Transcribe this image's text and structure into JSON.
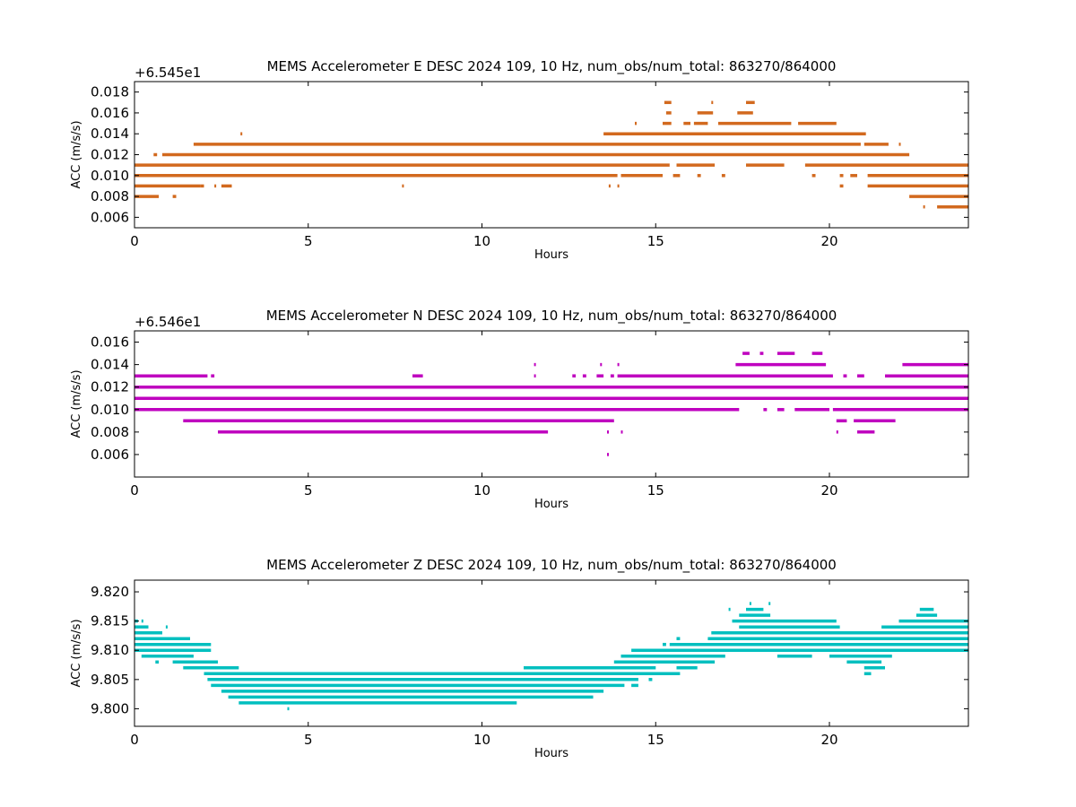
{
  "chart_data": [
    {
      "type": "scatter",
      "title": "MEMS Accelerometer E DESC 2024 109, 10 Hz, num_obs/num_total: 863270/864000",
      "xlabel": "Hours",
      "ylabel": "ACC (m/s/s)",
      "offset_label": "+6.545e1",
      "color": "#d2691e",
      "xlim": [
        0,
        24
      ],
      "ylim": [
        0.005,
        0.019
      ],
      "xticks": [
        "0",
        "5",
        "10",
        "15",
        "20"
      ],
      "yticks": [
        "0.006",
        "0.008",
        "0.010",
        "0.012",
        "0.014",
        "0.016",
        "0.018"
      ],
      "levels": [
        {
          "y": 0.017,
          "segments": [
            [
              15.25,
              15.45
            ],
            [
              16.6,
              16.65
            ],
            [
              17.6,
              17.85
            ]
          ]
        },
        {
          "y": 0.016,
          "segments": [
            [
              15.3,
              15.45
            ],
            [
              16.2,
              16.65
            ],
            [
              17.35,
              17.8
            ]
          ]
        },
        {
          "y": 0.015,
          "segments": [
            [
              14.4,
              14.45
            ],
            [
              15.2,
              15.45
            ],
            [
              15.8,
              16.0
            ],
            [
              16.1,
              16.5
            ],
            [
              16.8,
              18.9
            ],
            [
              19.1,
              20.2
            ]
          ]
        },
        {
          "y": 0.014,
          "segments": [
            [
              3.05,
              3.1
            ],
            [
              13.5,
              21.05
            ]
          ]
        },
        {
          "y": 0.013,
          "segments": [
            [
              1.7,
              20.9
            ],
            [
              21.0,
              21.7
            ],
            [
              22.0,
              22.05
            ]
          ]
        },
        {
          "y": 0.012,
          "segments": [
            [
              0.55,
              0.65
            ],
            [
              0.8,
              22.3
            ]
          ]
        },
        {
          "y": 0.011,
          "segments": [
            [
              0.0,
              15.4
            ],
            [
              15.6,
              16.7
            ],
            [
              17.6,
              18.7
            ],
            [
              19.3,
              24.0
            ]
          ]
        },
        {
          "y": 0.01,
          "segments": [
            [
              0.0,
              13.9
            ],
            [
              14.0,
              15.2
            ],
            [
              15.5,
              15.7
            ],
            [
              16.2,
              16.3
            ],
            [
              16.9,
              17.0
            ],
            [
              19.5,
              19.6
            ],
            [
              20.3,
              20.4
            ],
            [
              20.6,
              20.8
            ],
            [
              21.1,
              24.0
            ]
          ]
        },
        {
          "y": 0.009,
          "segments": [
            [
              0.0,
              1.9
            ],
            [
              1.9,
              2.0
            ],
            [
              2.3,
              2.3
            ],
            [
              2.5,
              2.8
            ],
            [
              7.7,
              7.75
            ],
            [
              13.65,
              13.7
            ],
            [
              13.9,
              13.95
            ],
            [
              20.3,
              20.4
            ],
            [
              21.1,
              24.0
            ]
          ]
        },
        {
          "y": 0.008,
          "segments": [
            [
              0.0,
              0.7
            ],
            [
              1.1,
              1.2
            ],
            [
              22.3,
              24.0
            ]
          ]
        },
        {
          "y": 0.007,
          "segments": [
            [
              22.7,
              22.75
            ],
            [
              23.1,
              24.0
            ]
          ]
        }
      ]
    },
    {
      "type": "scatter",
      "title": "MEMS Accelerometer N DESC 2024 109, 10 Hz, num_obs/num_total: 863270/864000",
      "xlabel": "Hours",
      "ylabel": "ACC (m/s/s)",
      "offset_label": "+6.546e1",
      "color": "#bf00bf",
      "xlim": [
        0,
        24
      ],
      "ylim": [
        0.004,
        0.017
      ],
      "xticks": [
        "0",
        "5",
        "10",
        "15",
        "20"
      ],
      "yticks": [
        "0.006",
        "0.008",
        "0.010",
        "0.012",
        "0.014",
        "0.016"
      ],
      "levels": [
        {
          "y": 0.015,
          "segments": [
            [
              17.5,
              17.7
            ],
            [
              18.0,
              18.1
            ],
            [
              18.5,
              19.0
            ],
            [
              19.5,
              19.8
            ]
          ]
        },
        {
          "y": 0.014,
          "segments": [
            [
              11.5,
              11.55
            ],
            [
              13.4,
              13.45
            ],
            [
              13.9,
              13.95
            ],
            [
              17.3,
              19.9
            ],
            [
              22.1,
              24.0
            ]
          ]
        },
        {
          "y": 0.013,
          "segments": [
            [
              0.0,
              2.1
            ],
            [
              2.2,
              2.3
            ],
            [
              8.0,
              8.3
            ],
            [
              11.5,
              11.55
            ],
            [
              12.6,
              12.7
            ],
            [
              12.9,
              13.0
            ],
            [
              13.3,
              13.5
            ],
            [
              13.7,
              13.8
            ],
            [
              13.9,
              20.1
            ],
            [
              20.4,
              20.5
            ],
            [
              20.8,
              21.0
            ],
            [
              21.6,
              24.0
            ]
          ]
        },
        {
          "y": 0.012,
          "segments": [
            [
              0.0,
              24.0
            ]
          ]
        },
        {
          "y": 0.011,
          "segments": [
            [
              0.0,
              24.0
            ]
          ]
        },
        {
          "y": 0.01,
          "segments": [
            [
              0.0,
              17.4
            ],
            [
              18.1,
              18.2
            ],
            [
              18.5,
              18.7
            ],
            [
              19.0,
              20.0
            ],
            [
              20.1,
              24.0
            ]
          ]
        },
        {
          "y": 0.009,
          "segments": [
            [
              1.4,
              13.8
            ],
            [
              20.2,
              20.5
            ],
            [
              20.7,
              21.9
            ]
          ]
        },
        {
          "y": 0.008,
          "segments": [
            [
              2.4,
              11.9
            ],
            [
              13.6,
              13.65
            ],
            [
              14.0,
              14.05
            ],
            [
              20.2,
              20.25
            ],
            [
              20.8,
              21.3
            ]
          ]
        },
        {
          "y": 0.006,
          "segments": [
            [
              13.6,
              13.65
            ]
          ]
        }
      ]
    },
    {
      "type": "scatter",
      "title": "MEMS Accelerometer Z DESC 2024 109, 10 Hz, num_obs/num_total: 863270/864000",
      "xlabel": "Hours",
      "ylabel": "ACC (m/s/s)",
      "offset_label": "",
      "color": "#00bfbf",
      "xlim": [
        0,
        24
      ],
      "ylim": [
        9.797,
        9.822
      ],
      "xticks": [
        "0",
        "5",
        "10",
        "15",
        "20"
      ],
      "yticks": [
        "9.800",
        "9.805",
        "9.810",
        "9.815",
        "9.820"
      ],
      "levels": [
        {
          "y": 9.818,
          "segments": [
            [
              17.7,
              17.75
            ],
            [
              18.25,
              18.3
            ]
          ]
        },
        {
          "y": 9.817,
          "segments": [
            [
              17.1,
              17.15
            ],
            [
              17.6,
              18.1
            ],
            [
              22.6,
              23.0
            ]
          ]
        },
        {
          "y": 9.816,
          "segments": [
            [
              17.4,
              18.3
            ],
            [
              22.5,
              23.1
            ]
          ]
        },
        {
          "y": 9.815,
          "segments": [
            [
              0.0,
              0.1
            ],
            [
              0.2,
              0.25
            ],
            [
              17.2,
              20.2
            ],
            [
              22.0,
              24.0
            ]
          ]
        },
        {
          "y": 9.814,
          "segments": [
            [
              0.0,
              0.4
            ],
            [
              0.9,
              0.95
            ],
            [
              17.4,
              20.3
            ],
            [
              21.5,
              24.0
            ]
          ]
        },
        {
          "y": 9.813,
          "segments": [
            [
              0.0,
              0.8
            ],
            [
              16.6,
              24.0
            ]
          ]
        },
        {
          "y": 9.812,
          "segments": [
            [
              0.0,
              1.6
            ],
            [
              15.6,
              15.7
            ],
            [
              16.5,
              24.0
            ]
          ]
        },
        {
          "y": 9.811,
          "segments": [
            [
              0.0,
              2.2
            ],
            [
              15.2,
              15.3
            ],
            [
              15.4,
              24.0
            ]
          ]
        },
        {
          "y": 9.81,
          "segments": [
            [
              0.0,
              2.2
            ],
            [
              14.3,
              24.0
            ]
          ]
        },
        {
          "y": 9.809,
          "segments": [
            [
              0.2,
              1.7
            ],
            [
              14.0,
              17.0
            ],
            [
              18.5,
              19.5
            ],
            [
              20.0,
              21.8
            ]
          ]
        },
        {
          "y": 9.808,
          "segments": [
            [
              0.6,
              0.7
            ],
            [
              1.1,
              2.4
            ],
            [
              13.8,
              16.7
            ],
            [
              20.5,
              21.5
            ]
          ]
        },
        {
          "y": 9.807,
          "segments": [
            [
              1.4,
              3.0
            ],
            [
              11.2,
              15.0
            ],
            [
              15.6,
              16.2
            ],
            [
              21.0,
              21.6
            ]
          ]
        },
        {
          "y": 9.806,
          "segments": [
            [
              2.0,
              15.7
            ],
            [
              21.0,
              21.2
            ]
          ]
        },
        {
          "y": 9.805,
          "segments": [
            [
              2.1,
              14.5
            ],
            [
              14.8,
              14.9
            ]
          ]
        },
        {
          "y": 9.804,
          "segments": [
            [
              2.2,
              14.1
            ],
            [
              14.3,
              14.5
            ]
          ]
        },
        {
          "y": 9.803,
          "segments": [
            [
              2.5,
              13.5
            ]
          ]
        },
        {
          "y": 9.802,
          "segments": [
            [
              2.7,
              13.2
            ]
          ]
        },
        {
          "y": 9.801,
          "segments": [
            [
              3.0,
              11.0
            ]
          ]
        },
        {
          "y": 9.8,
          "segments": [
            [
              4.4,
              4.45
            ]
          ]
        }
      ]
    }
  ]
}
